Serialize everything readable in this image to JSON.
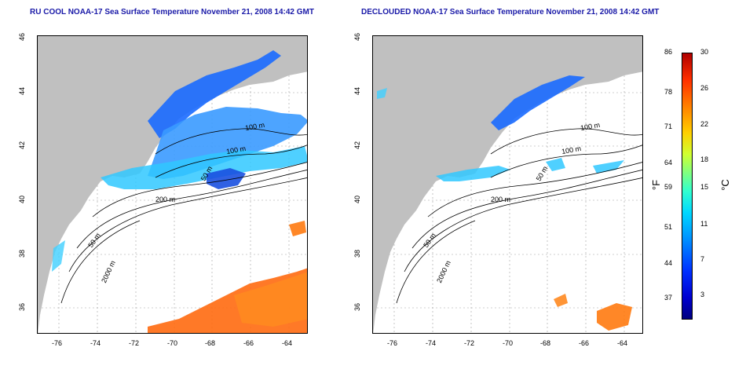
{
  "left_title": "RU COOL NOAA-17 Sea Surface Temperature November 21, 2008 14:42 GMT",
  "right_title": "DECLOUDED NOAA-17 Sea Surface Temperature November 21, 2008 14:42 GMT",
  "x_ticks": [
    "-76",
    "-74",
    "-72",
    "-70",
    "-68",
    "-66",
    "-64"
  ],
  "y_ticks": [
    "46",
    "44",
    "42",
    "40",
    "38",
    "36"
  ],
  "contour_labels": {
    "c100a": "100 m",
    "c100b": "100 m",
    "c50a": "50 m",
    "c200": "200 m",
    "c50b": "50 m",
    "c2000": "2000 m"
  },
  "colorbar": {
    "fahrenheit_ticks": [
      "86",
      "78",
      "71",
      "64",
      "59",
      "51",
      "44",
      "37"
    ],
    "celsius_ticks": [
      "30",
      "26",
      "22",
      "18",
      "15",
      "11",
      "7",
      "3"
    ],
    "fahrenheit_unit": "°F",
    "celsius_unit": "°C"
  },
  "colors": {
    "land": "#c0c0c0",
    "title": "#1a1aa8",
    "contour": "#000000",
    "grid": "#a0a0a0"
  }
}
